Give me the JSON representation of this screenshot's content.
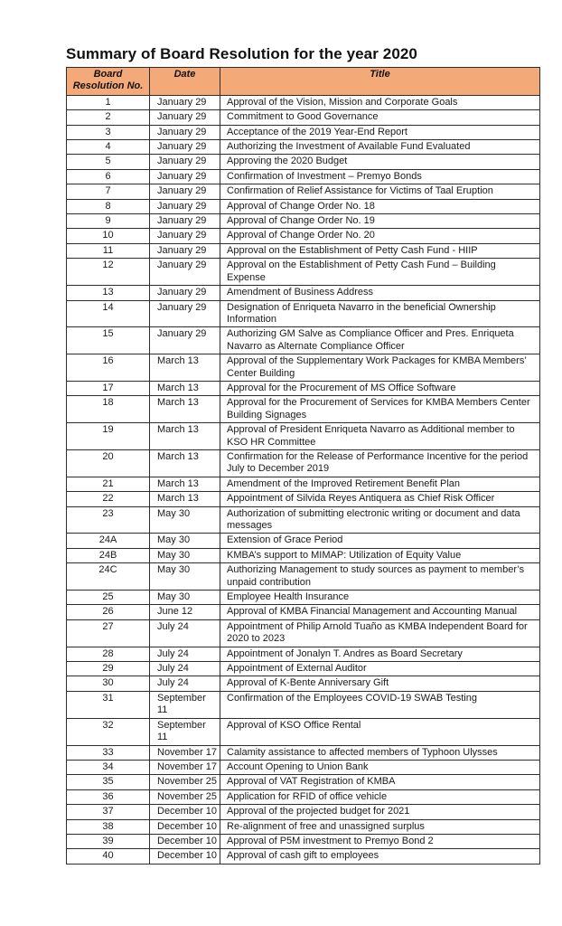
{
  "page": {
    "title": "Summary of Board Resolution for the year 2020"
  },
  "colors": {
    "header_background": "#f4a978",
    "table_border": "#2e2e2e",
    "page_background": "#ffffff",
    "text": "#111111"
  },
  "table": {
    "columns": {
      "no": "Board Resolution No.",
      "date": "Date",
      "title": "Title"
    },
    "rows": [
      {
        "no": "1",
        "date": "January 29",
        "title": "Approval of the Vision, Mission and Corporate Goals"
      },
      {
        "no": "2",
        "date": "January 29",
        "title": "Commitment to Good Governance"
      },
      {
        "no": "3",
        "date": "January 29",
        "title": "Acceptance of the 2019 Year-End Report"
      },
      {
        "no": "4",
        "date": "January 29",
        "title": "Authorizing the Investment of Available Fund Evaluated"
      },
      {
        "no": "5",
        "date": "January 29",
        "title": "Approving the 2020 Budget"
      },
      {
        "no": "6",
        "date": "January 29",
        "title": "Confirmation of Investment – Premyo Bonds"
      },
      {
        "no": "7",
        "date": "January 29",
        "title": "Confirmation of Relief Assistance for Victims of Taal Eruption"
      },
      {
        "no": "8",
        "date": "January 29",
        "title": "Approval of Change Order No. 18"
      },
      {
        "no": "9",
        "date": "January 29",
        "title": "Approval of Change Order No. 19"
      },
      {
        "no": "10",
        "date": "January 29",
        "title": "Approval of Change Order No. 20"
      },
      {
        "no": "11",
        "date": "January 29",
        "title": "Approval on the Establishment of Petty Cash Fund - HIIP"
      },
      {
        "no": "12",
        "date": "January 29",
        "title": "Approval on the Establishment of Petty Cash Fund – Building Expense"
      },
      {
        "no": "13",
        "date": "January 29",
        "title": "Amendment of Business Address"
      },
      {
        "no": "14",
        "date": "January 29",
        "title": "Designation of Enriqueta Navarro in the beneficial Ownership Information"
      },
      {
        "no": "15",
        "date": "January 29",
        "title": "Authorizing GM Salve as Compliance Officer and Pres. Enriqueta Navarro as Alternate Compliance Officer"
      },
      {
        "no": "16",
        "date": "March 13",
        "title": "Approval of the Supplementary Work Packages for KMBA Members’ Center Building"
      },
      {
        "no": "17",
        "date": "March 13",
        "title": "Approval for the Procurement of MS Office Software"
      },
      {
        "no": "18",
        "date": "March 13",
        "title": "Approval for the Procurement of Services for KMBA Members Center Building Signages"
      },
      {
        "no": "19",
        "date": "March 13",
        "title": "Approval of President Enriqueta Navarro as Additional member to KSO HR Committee"
      },
      {
        "no": "20",
        "date": "March 13",
        "title": "Confirmation for the Release of Performance Incentive for the period July to December 2019"
      },
      {
        "no": "21",
        "date": "March 13",
        "title": "Amendment of the Improved Retirement Benefit Plan"
      },
      {
        "no": "22",
        "date": "March 13",
        "title": "Appointment of Silvida Reyes Antiquera as Chief Risk Officer"
      },
      {
        "no": "23",
        "date": "May 30",
        "title": "Authorization of submitting electronic writing or document and data messages"
      },
      {
        "no": "24A",
        "date": "May 30",
        "title": "Extension of Grace Period"
      },
      {
        "no": "24B",
        "date": "May 30",
        "title": "KMBA’s support to MIMAP: Utilization of Equity Value"
      },
      {
        "no": "24C",
        "date": "May 30",
        "title": "Authorizing Management to study sources as payment to member’s unpaid contribution"
      },
      {
        "no": "25",
        "date": "May 30",
        "title": "Employee Health Insurance"
      },
      {
        "no": "26",
        "date": "June 12",
        "title": "Approval of KMBA Financial Management and Accounting Manual"
      },
      {
        "no": "27",
        "date": "July 24",
        "title": "Appointment of Philip Arnold Tuaño as KMBA Independent Board for 2020 to 2023"
      },
      {
        "no": "28",
        "date": "July 24",
        "title": "Appointment of Jonalyn T. Andres as Board Secretary"
      },
      {
        "no": "29",
        "date": "July 24",
        "title": "Appointment of External Auditor"
      },
      {
        "no": "30",
        "date": "July 24",
        "title": "Approval of K-Bente Anniversary Gift"
      },
      {
        "no": "31",
        "date": "September 11",
        "title": "Confirmation of the Employees COVID-19 SWAB Testing"
      },
      {
        "no": "32",
        "date": "September 11",
        "title": "Approval of KSO Office Rental"
      },
      {
        "no": "33",
        "date": "November 17",
        "title": "Calamity assistance to affected members of Typhoon Ulysses"
      },
      {
        "no": "34",
        "date": "November 17",
        "title": "Account Opening to Union Bank"
      },
      {
        "no": "35",
        "date": "November 25",
        "title": "Approval of VAT Registration of KMBA"
      },
      {
        "no": "36",
        "date": "November 25",
        "title": "Application for RFID of office vehicle"
      },
      {
        "no": "37",
        "date": "December 10",
        "title": "Approval of the projected budget for 2021"
      },
      {
        "no": "38",
        "date": "December 10",
        "title": "Re-alignment of free and unassigned surplus"
      },
      {
        "no": "39",
        "date": "December 10",
        "title": "Approval of P5M investment to Premyo Bond 2"
      },
      {
        "no": "40",
        "date": "December 10",
        "title": "Approval of cash gift to employees"
      }
    ]
  }
}
